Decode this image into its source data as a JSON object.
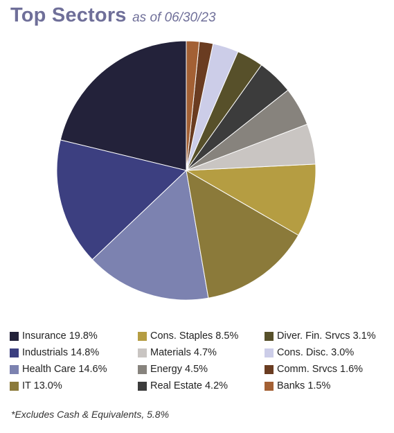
{
  "title": {
    "main": "Top Sectors",
    "sub": "as of 06/30/23"
  },
  "footnote": "*Excludes Cash & Equivalents, 5.8%",
  "chart_data": {
    "type": "pie",
    "legend_placement": "bottom",
    "slices": [
      {
        "label": "Insurance 19.8%",
        "value": 19.8,
        "color": "#23223a"
      },
      {
        "label": "Industrials 14.8%",
        "value": 14.8,
        "color": "#3c3f80"
      },
      {
        "label": "Health Care 14.6%",
        "value": 14.6,
        "color": "#7c82b0"
      },
      {
        "label": "IT 13.0%",
        "value": 13.0,
        "color": "#8b7a3a"
      },
      {
        "label": "Cons. Staples 8.5%",
        "value": 8.5,
        "color": "#b59d42"
      },
      {
        "label": "Materials 4.7%",
        "value": 4.7,
        "color": "#c9c5c2"
      },
      {
        "label": "Energy 4.5%",
        "value": 4.5,
        "color": "#87837d"
      },
      {
        "label": "Real Estate 4.2%",
        "value": 4.2,
        "color": "#3c3c3c"
      },
      {
        "label": "Diver. Fin. Srvcs 3.1%",
        "value": 3.1,
        "color": "#57502a"
      },
      {
        "label": "Cons. Disc. 3.0%",
        "value": 3.0,
        "color": "#cccde8"
      },
      {
        "label": "Comm. Srvcs 1.6%",
        "value": 1.6,
        "color": "#6a3c21"
      },
      {
        "label": "Banks 1.5%",
        "value": 1.5,
        "color": "#a36034"
      }
    ]
  }
}
